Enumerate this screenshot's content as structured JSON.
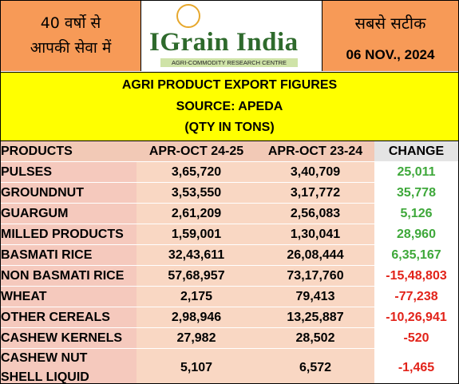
{
  "header": {
    "left_line1": "40 वर्षो से",
    "left_line2": "आपकी सेवा में",
    "logo_text": "IGrain India",
    "logo_subtitle": "AGRI-COMMODITY RESEARCH CENTRE",
    "right_line1": "सबसे सटीक",
    "date": "06 NOV., 2024"
  },
  "title": {
    "line1": "AGRI PRODUCT EXPORT FIGURES",
    "line2": "SOURCE: APEDA",
    "line3": "(QTY IN TONS)"
  },
  "colors": {
    "header_orange": "#f79a57",
    "title_yellow": "#ffff00",
    "positive": "#3ea83a",
    "negative": "#e2231a"
  },
  "chart_data": {
    "type": "table",
    "title": "AGRI PRODUCT EXPORT FIGURES",
    "columns": [
      "PRODUCTS",
      "APR-OCT 24-25",
      "APR-OCT 23-24",
      "CHANGE"
    ],
    "rows": [
      {
        "product": "PULSES",
        "cur": "3,65,720",
        "prev": "3,40,709",
        "change": "25,011",
        "sign": "pos"
      },
      {
        "product": "GROUNDNUT",
        "cur": "3,53,550",
        "prev": "3,17,772",
        "change": "35,778",
        "sign": "pos"
      },
      {
        "product": "GUARGUM",
        "cur": "2,61,209",
        "prev": "2,56,083",
        "change": "5,126",
        "sign": "pos"
      },
      {
        "product": "MILLED PRODUCTS",
        "cur": "1,59,001",
        "prev": "1,30,041",
        "change": "28,960",
        "sign": "pos"
      },
      {
        "product": "BASMATI RICE",
        "cur": "32,43,611",
        "prev": "26,08,444",
        "change": "6,35,167",
        "sign": "pos"
      },
      {
        "product": "NON BASMATI RICE",
        "cur": "57,68,957",
        "prev": "73,17,760",
        "change": "-15,48,803",
        "sign": "neg"
      },
      {
        "product": "WHEAT",
        "cur": "2,175",
        "prev": "79,413",
        "change": "-77,238",
        "sign": "neg"
      },
      {
        "product": "OTHER CEREALS",
        "cur": "2,98,946",
        "prev": "13,25,887",
        "change": "-10,26,941",
        "sign": "neg"
      },
      {
        "product": "CASHEW KERNELS",
        "cur": "27,982",
        "prev": "28,502",
        "change": "-520",
        "sign": "neg"
      }
    ],
    "last_row": {
      "product_line1": "CASHEW NUT",
      "product_line2": "SHELL LIQUID",
      "cur": "5,107",
      "prev": "6,572",
      "change": "-1,465",
      "sign": "neg"
    }
  }
}
